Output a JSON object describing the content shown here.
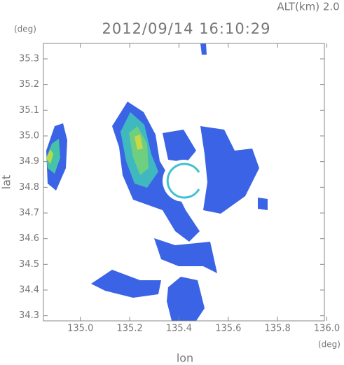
{
  "chart_data": {
    "type": "radar-map",
    "title": "2012/09/14 16:10:29",
    "subtitle": "ALT(km) 2.0",
    "x_label": "lon",
    "y_label": "lat",
    "x_unit": "(deg)",
    "y_unit": "(deg)",
    "xlim": [
      134.85,
      135.99
    ],
    "ylim": [
      34.28,
      35.36
    ],
    "xticks": [
      {
        "value": 135,
        "label": "135.0"
      },
      135.2,
      135.4,
      135.6,
      135.8,
      {
        "value": 136,
        "label": "136.0"
      }
    ],
    "yticks": [
      34.3,
      34.4,
      34.5,
      34.6,
      34.7,
      34.8,
      34.9,
      {
        "value": 35,
        "label": "35.0"
      },
      35.1,
      35.2,
      35.3
    ]
  }
}
